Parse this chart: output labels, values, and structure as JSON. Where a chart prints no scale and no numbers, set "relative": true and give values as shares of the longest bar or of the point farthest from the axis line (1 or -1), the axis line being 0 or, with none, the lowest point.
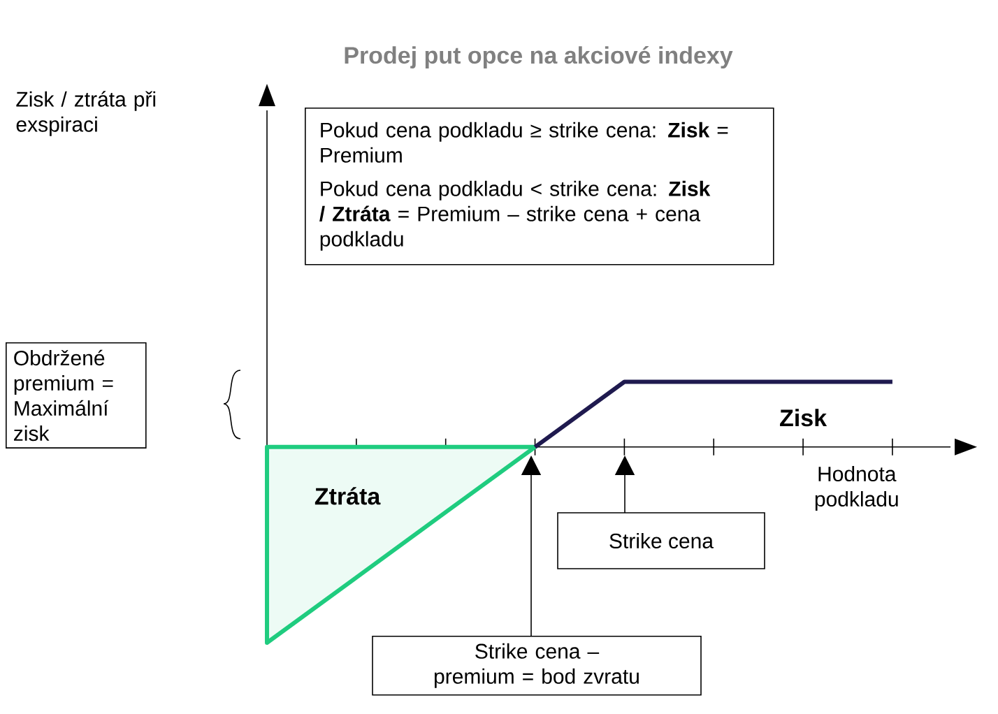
{
  "chart_data": {
    "type": "line",
    "title": "Prodej put opce na akciové indexy",
    "xlabel": "Hodnota podkladu",
    "categories": [
      null,
      null,
      null,
      null,
      null,
      null,
      null,
      null
    ],
    "relative": true,
    "legend": false,
    "series": [
      {
        "name": "Ztráta",
        "type": "area",
        "color": "#1fcc7f",
        "values": [
          -1,
          -0.667,
          -0.333,
          0,
          null,
          null,
          null,
          null
        ]
      },
      {
        "name": "Zisk",
        "color": "#1f1a4f",
        "values": [
          null,
          null,
          null,
          0,
          0.333,
          0.333,
          0.333,
          0.333
        ]
      }
    ],
    "annotations": [
      "Zisk / ztráta při exspiraci",
      "Pokud cena podkladu ≥ strike cena: **Zisk** = Premium",
      "Pokud cena podkladu < strike cena: **Zisk / Ztráta** = Premium – strike cena + cena podkladu",
      "Obdržené premium = Maximální zisk",
      "Strike cena",
      "Strike cena – premium = bod zvratu"
    ]
  }
}
